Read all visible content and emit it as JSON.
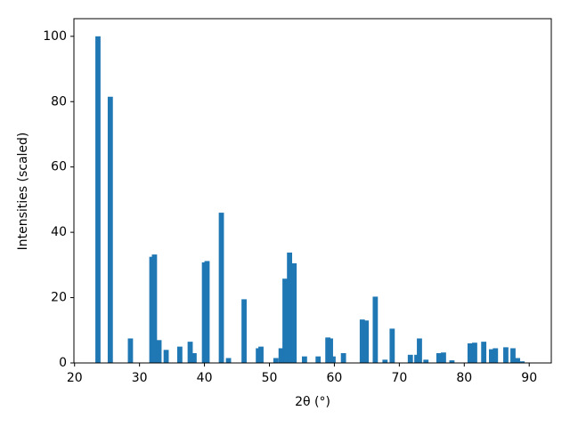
{
  "chart_data": {
    "type": "bar",
    "color": "#1f77b4",
    "x_label": "2θ (°)",
    "y_label": "Intensities (scaled)",
    "x": [
      23.6,
      25.5,
      28.6,
      31.9,
      32.3,
      33.0,
      34.1,
      36.2,
      37.8,
      38.4,
      40.0,
      40.4,
      42.6,
      43.7,
      46.1,
      48.3,
      48.7,
      51.0,
      51.8,
      52.4,
      53.1,
      53.8,
      55.4,
      57.5,
      59.0,
      59.4,
      59.8,
      61.4,
      64.3,
      64.9,
      66.3,
      67.8,
      68.9,
      71.7,
      72.7,
      73.1,
      74.1,
      76.1,
      76.8,
      78.1,
      80.9,
      81.6,
      83.0,
      84.2,
      84.8,
      86.4,
      87.5,
      88.2,
      88.9
    ],
    "values": [
      100,
      81.5,
      7.5,
      32.5,
      33.2,
      7,
      4,
      5,
      6.5,
      3,
      30.8,
      31.2,
      46,
      1.5,
      19.5,
      4.5,
      5,
      1.5,
      4.5,
      25.8,
      33.8,
      30.5,
      2,
      2,
      7.8,
      7.5,
      2,
      3,
      13.3,
      13,
      20.3,
      1,
      10.5,
      2.5,
      2.5,
      7.5,
      1,
      3,
      3.2,
      0.8,
      6,
      6.2,
      6.5,
      4.2,
      4.5,
      4.8,
      4.5,
      1.5,
      0.5
    ],
    "xlim": [
      19.9,
      93.4
    ],
    "ylim": [
      0,
      105.4
    ],
    "xticks": [
      20,
      30,
      40,
      50,
      60,
      70,
      80,
      90
    ],
    "yticks": [
      0,
      20,
      40,
      60,
      80,
      100
    ]
  }
}
